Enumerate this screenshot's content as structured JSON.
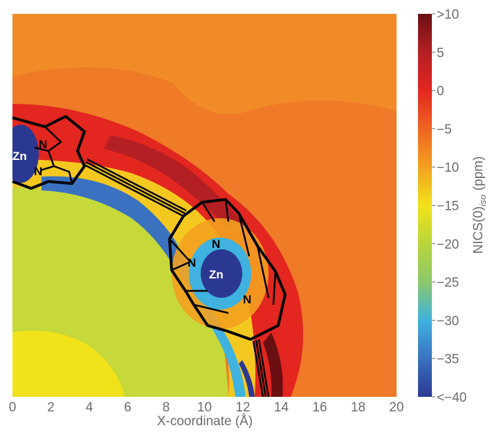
{
  "chart_data": {
    "type": "heatmap",
    "title": "",
    "xlabel": "X-coordinate (Å)",
    "ylabel": "",
    "xlim": [
      0,
      20
    ],
    "x_ticks": [
      "0",
      "2",
      "4",
      "6",
      "8",
      "10",
      "12",
      "14",
      "16",
      "18",
      "20"
    ],
    "colorbar": {
      "label_main": "NICS(0)",
      "label_sub": "iso",
      "label_unit": "(ppm)",
      "range": [
        -40,
        10
      ],
      "tick_labels": [
        ">10",
        "5",
        "0",
        "−5",
        "−10",
        "−15",
        "−20",
        "−25",
        "−30",
        "−35",
        "<−40"
      ],
      "tick_values": [
        10,
        5,
        0,
        -5,
        -10,
        -15,
        -20,
        -25,
        -30,
        -35,
        -40
      ],
      "colors": [
        "#6a0f12",
        "#b41f24",
        "#e3261f",
        "#ef6423",
        "#f3a11f",
        "#f2e21a",
        "#b8d63a",
        "#8cc86a",
        "#3fb2df",
        "#3a72c0",
        "#2b3892"
      ]
    },
    "atom_labels": [
      "Zn",
      "N",
      "N",
      "N",
      "N",
      "Zn",
      "N"
    ],
    "grid": false
  }
}
